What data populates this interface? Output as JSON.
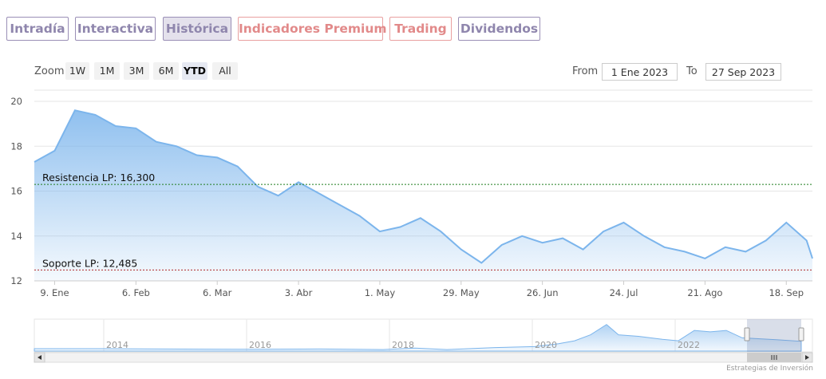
{
  "tabs": [
    {
      "label": "Intradía",
      "active": false,
      "premium": false
    },
    {
      "label": "Interactiva",
      "active": false,
      "premium": false
    },
    {
      "label": "Histórica",
      "active": true,
      "premium": false
    },
    {
      "label": "Indicadores Premium",
      "active": false,
      "premium": true
    },
    {
      "label": "Trading",
      "active": false,
      "premium": true
    },
    {
      "label": "Dividendos",
      "active": false,
      "premium": false
    }
  ],
  "zoom": {
    "label": "Zoom",
    "buttons": [
      "1W",
      "1M",
      "3M",
      "6M",
      "YTD",
      "All"
    ],
    "selected": "YTD"
  },
  "range": {
    "from_label": "From",
    "from_value": "1 Ene 2023",
    "to_label": "To",
    "to_value": "27 Sep 2023"
  },
  "colors": {
    "line": "#7cb5ec",
    "resistance": "#1e7d1e",
    "support": "#b0282a",
    "tab_border": "#9a8fb6",
    "tab_premium": "#e28a8a"
  },
  "chart_data": {
    "type": "area",
    "title": "",
    "ylim": [
      12,
      20.5
    ],
    "yticks": [
      12,
      14,
      16,
      18,
      20
    ],
    "xticks": [
      "9. Ene",
      "6. Feb",
      "6. Mar",
      "3. Abr",
      "1. May",
      "29. May",
      "26. Jun",
      "24. Jul",
      "21. Ago",
      "18. Sep"
    ],
    "x": [
      "2023-01-02",
      "2023-01-09",
      "2023-01-16",
      "2023-01-23",
      "2023-01-30",
      "2023-02-06",
      "2023-02-13",
      "2023-02-20",
      "2023-02-27",
      "2023-03-06",
      "2023-03-13",
      "2023-03-20",
      "2023-03-27",
      "2023-04-03",
      "2023-04-10",
      "2023-04-17",
      "2023-04-24",
      "2023-05-01",
      "2023-05-08",
      "2023-05-15",
      "2023-05-22",
      "2023-05-29",
      "2023-06-05",
      "2023-06-12",
      "2023-06-19",
      "2023-06-26",
      "2023-07-03",
      "2023-07-10",
      "2023-07-17",
      "2023-07-24",
      "2023-07-31",
      "2023-08-07",
      "2023-08-14",
      "2023-08-21",
      "2023-08-28",
      "2023-09-04",
      "2023-09-11",
      "2023-09-18",
      "2023-09-25",
      "2023-09-27"
    ],
    "series": [
      {
        "values": [
          17.3,
          17.8,
          19.6,
          19.4,
          18.9,
          18.8,
          18.2,
          18.0,
          17.6,
          17.5,
          17.1,
          16.2,
          15.8,
          16.4,
          15.9,
          15.4,
          14.9,
          14.2,
          14.4,
          14.8,
          14.2,
          13.4,
          12.8,
          13.6,
          14.0,
          13.7,
          13.9,
          13.4,
          14.2,
          14.6,
          14.0,
          13.5,
          13.3,
          13.0,
          13.5,
          13.3,
          13.8,
          14.6,
          13.8,
          13.0
        ]
      }
    ],
    "reference_lines": [
      {
        "label": "Resistencia LP: 16,300",
        "value": 16.3
      },
      {
        "label": "Soporte LP: 12,485",
        "value": 12.485
      }
    ],
    "navigator": {
      "year_labels": [
        "2014",
        "2016",
        "2018",
        "2020",
        "2022"
      ]
    },
    "credit": "Estrategias de Inversión"
  }
}
